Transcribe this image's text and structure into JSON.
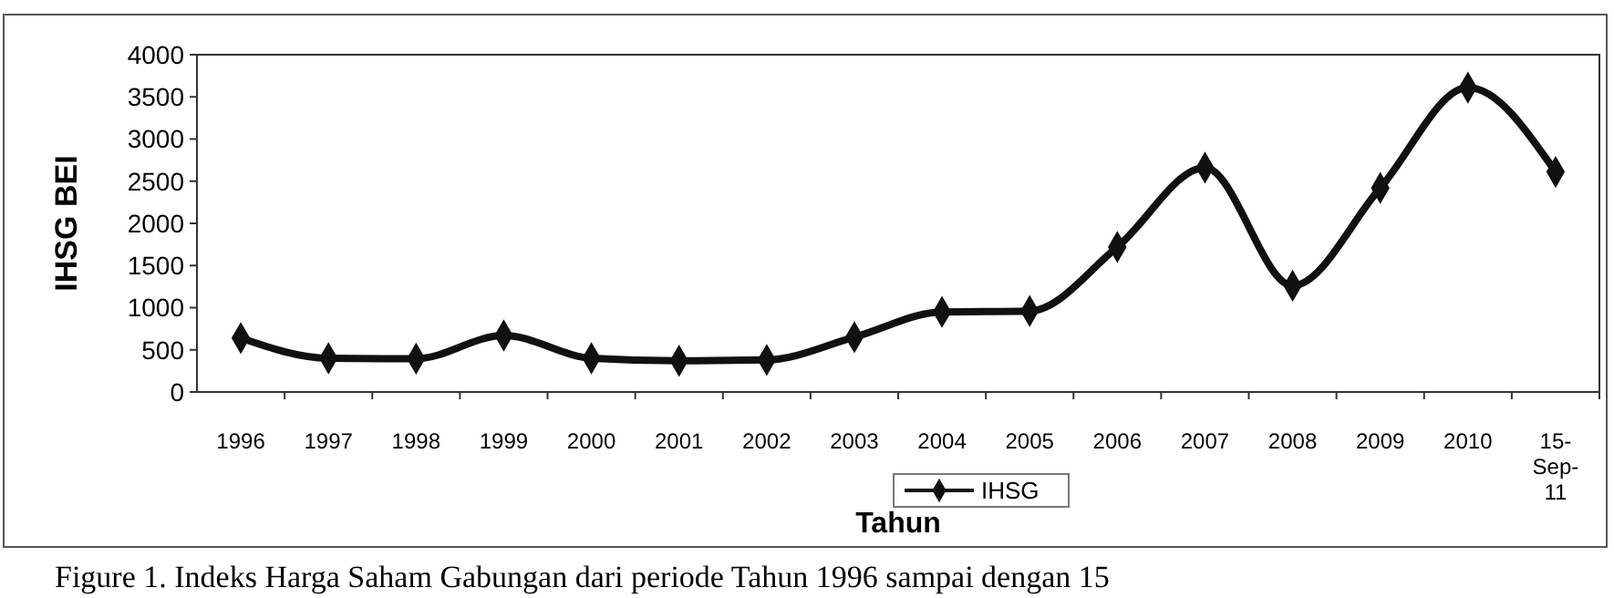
{
  "chart_data": {
    "type": "line",
    "xlabel": "Tahun",
    "ylabel": "IHSG BEI",
    "categories": [
      "1996",
      "1997",
      "1998",
      "1999",
      "2000",
      "2001",
      "2002",
      "2003",
      "2004",
      "2005",
      "2006",
      "2007",
      "2008",
      "2009",
      "2010",
      "15-Sep-11"
    ],
    "series": [
      {
        "name": "IHSG",
        "color": "#111111",
        "values": [
          640,
          400,
          395,
          670,
          400,
          370,
          380,
          650,
          950,
          960,
          1720,
          2660,
          1260,
          2420,
          3610,
          2610
        ]
      }
    ],
    "ylim": [
      0,
      4000
    ],
    "yticks": [
      0,
      500,
      1000,
      1500,
      2000,
      2500,
      3000,
      3500,
      4000
    ],
    "marker": "diamond",
    "line_style": "solid",
    "legend": "bottom",
    "grid": false,
    "annotations": [
      "Figure 1. Indeks Harga Saham Gabungan dari periode Tahun 1996 sampai dengan 15"
    ]
  }
}
